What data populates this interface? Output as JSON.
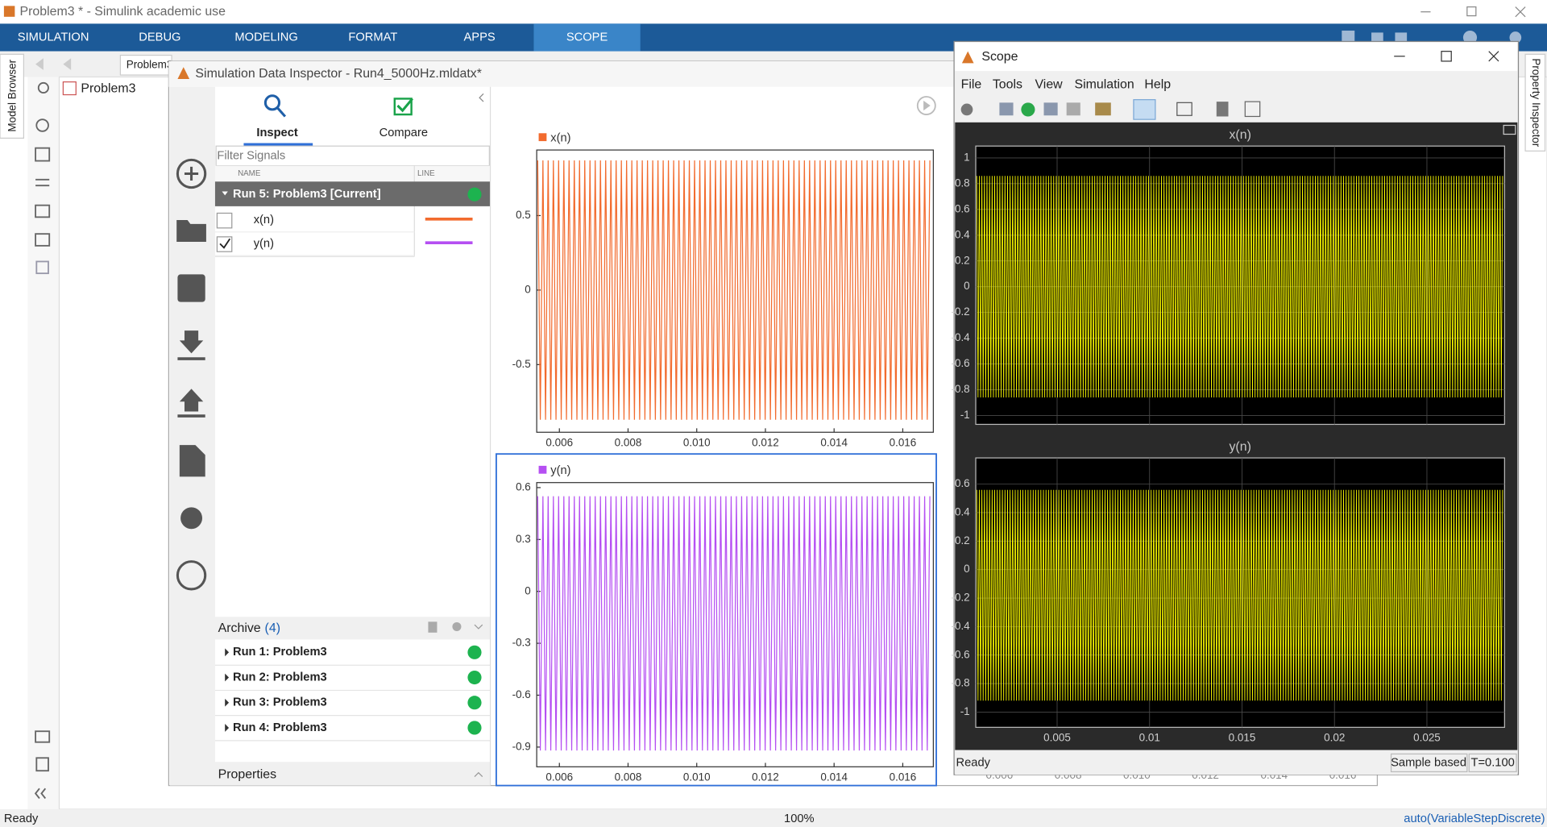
{
  "window": {
    "title": "Problem3 * - Simulink academic use"
  },
  "ribbon": {
    "tabs": [
      "SIMULATION",
      "DEBUG",
      "MODELING",
      "FORMAT",
      "APPS",
      "SCOPE"
    ]
  },
  "editor": {
    "tab": "Problem3",
    "model_path": "Problem3",
    "side_tab": "Model Browser",
    "right_tab": "Property Inspector"
  },
  "status_bar": {
    "state": "Ready",
    "zoom": "100%",
    "solver": "auto(VariableStepDiscrete)"
  },
  "sdi": {
    "title": "Simulation Data Inspector - Run4_5000Hz.mldatx*",
    "tabs": [
      "Inspect",
      "Compare"
    ],
    "filter_placeholder": "Filter Signals",
    "columns": [
      "NAME",
      "LINE"
    ],
    "current_run": "Run 5: Problem3 [Current]",
    "signals": [
      {
        "name": "x(n)",
        "checked": false,
        "color": "#f26b2e"
      },
      {
        "name": "y(n)",
        "checked": true,
        "color": "#b54ff2"
      }
    ],
    "archive": {
      "label": "Archive",
      "count": "(4)",
      "runs": [
        "Run 1: Problem3",
        "Run 2: Problem3",
        "Run 3: Problem3",
        "Run 4: Problem3"
      ]
    },
    "properties": "Properties",
    "hidden_axis_labels": [
      "0.006",
      "0.008",
      "0.010",
      "0.012",
      "0.014",
      "0.016"
    ]
  },
  "scope": {
    "title": "Scope",
    "menu": [
      "File",
      "Tools",
      "View",
      "Simulation",
      "Help"
    ],
    "status": "Ready",
    "mode": "Sample based",
    "time": "T=0.100"
  },
  "chart_data": [
    {
      "type": "line",
      "legend": true,
      "grid": false,
      "background": "#ffffff",
      "xlim": [
        0.00534,
        0.01689
      ],
      "ylim": [
        -0.954,
        0.94
      ],
      "xticks": [
        0.006,
        0.008,
        {
          "value": 0.01,
          "label": "0.010"
        },
        {
          "value": 0.012,
          "label": "0.012"
        },
        {
          "value": 0.014,
          "label": "0.014"
        },
        {
          "value": 0.016,
          "label": "0.016"
        }
      ],
      "yticks": [
        0.5,
        0,
        -0.5
      ],
      "series": [
        {
          "name": "x(n)",
          "color": "#f26b2e",
          "envelope": [
            -0.87,
            0.87
          ]
        }
      ]
    },
    {
      "type": "line",
      "legend": true,
      "grid": false,
      "background": "#ffffff",
      "xlim": [
        0.00534,
        0.01689
      ],
      "ylim": [
        -1.014,
        0.629
      ],
      "xticks": [
        0.006,
        0.008,
        {
          "value": 0.01,
          "label": "0.010"
        },
        {
          "value": 0.012,
          "label": "0.012"
        },
        {
          "value": 0.014,
          "label": "0.014"
        },
        {
          "value": 0.016,
          "label": "0.016"
        }
      ],
      "yticks": [
        0.6,
        0.3,
        0,
        -0.3,
        -0.6,
        -0.9
      ],
      "series": [
        {
          "name": "y(n)",
          "color": "#b54ff2",
          "envelope": [
            -0.92,
            0.55
          ]
        }
      ]
    },
    {
      "type": "line",
      "title": "x(n)",
      "legend": false,
      "grid": true,
      "background": "#000000",
      "xtick_labels": false,
      "xlim": [
        0.0006,
        0.0292
      ],
      "ylim": [
        -1.069,
        1.092
      ],
      "xticks": [
        0.005,
        0.01,
        0.015,
        0.02,
        0.025
      ],
      "yticks": [
        1,
        0.8,
        0.6,
        0.4,
        0.2,
        0,
        -0.2,
        -0.4,
        -0.6,
        -0.8,
        -1
      ],
      "series": [
        {
          "color": "#ffff00",
          "envelope": [
            -0.86,
            0.86
          ]
        }
      ]
    },
    {
      "type": "line",
      "title": "y(n)",
      "legend": false,
      "grid": true,
      "background": "#000000",
      "xtick_labels": true,
      "xlim": [
        0.0006,
        0.0292
      ],
      "ylim": [
        -1.107,
        0.784
      ],
      "xticks": [
        0.005,
        0.01,
        0.015,
        0.02,
        0.025
      ],
      "yticks": [
        0.6,
        0.4,
        0.2,
        0,
        -0.2,
        -0.4,
        -0.6,
        -0.8,
        -1
      ],
      "series": [
        {
          "color": "#ffff00",
          "envelope": [
            -0.92,
            0.56
          ]
        }
      ]
    }
  ]
}
